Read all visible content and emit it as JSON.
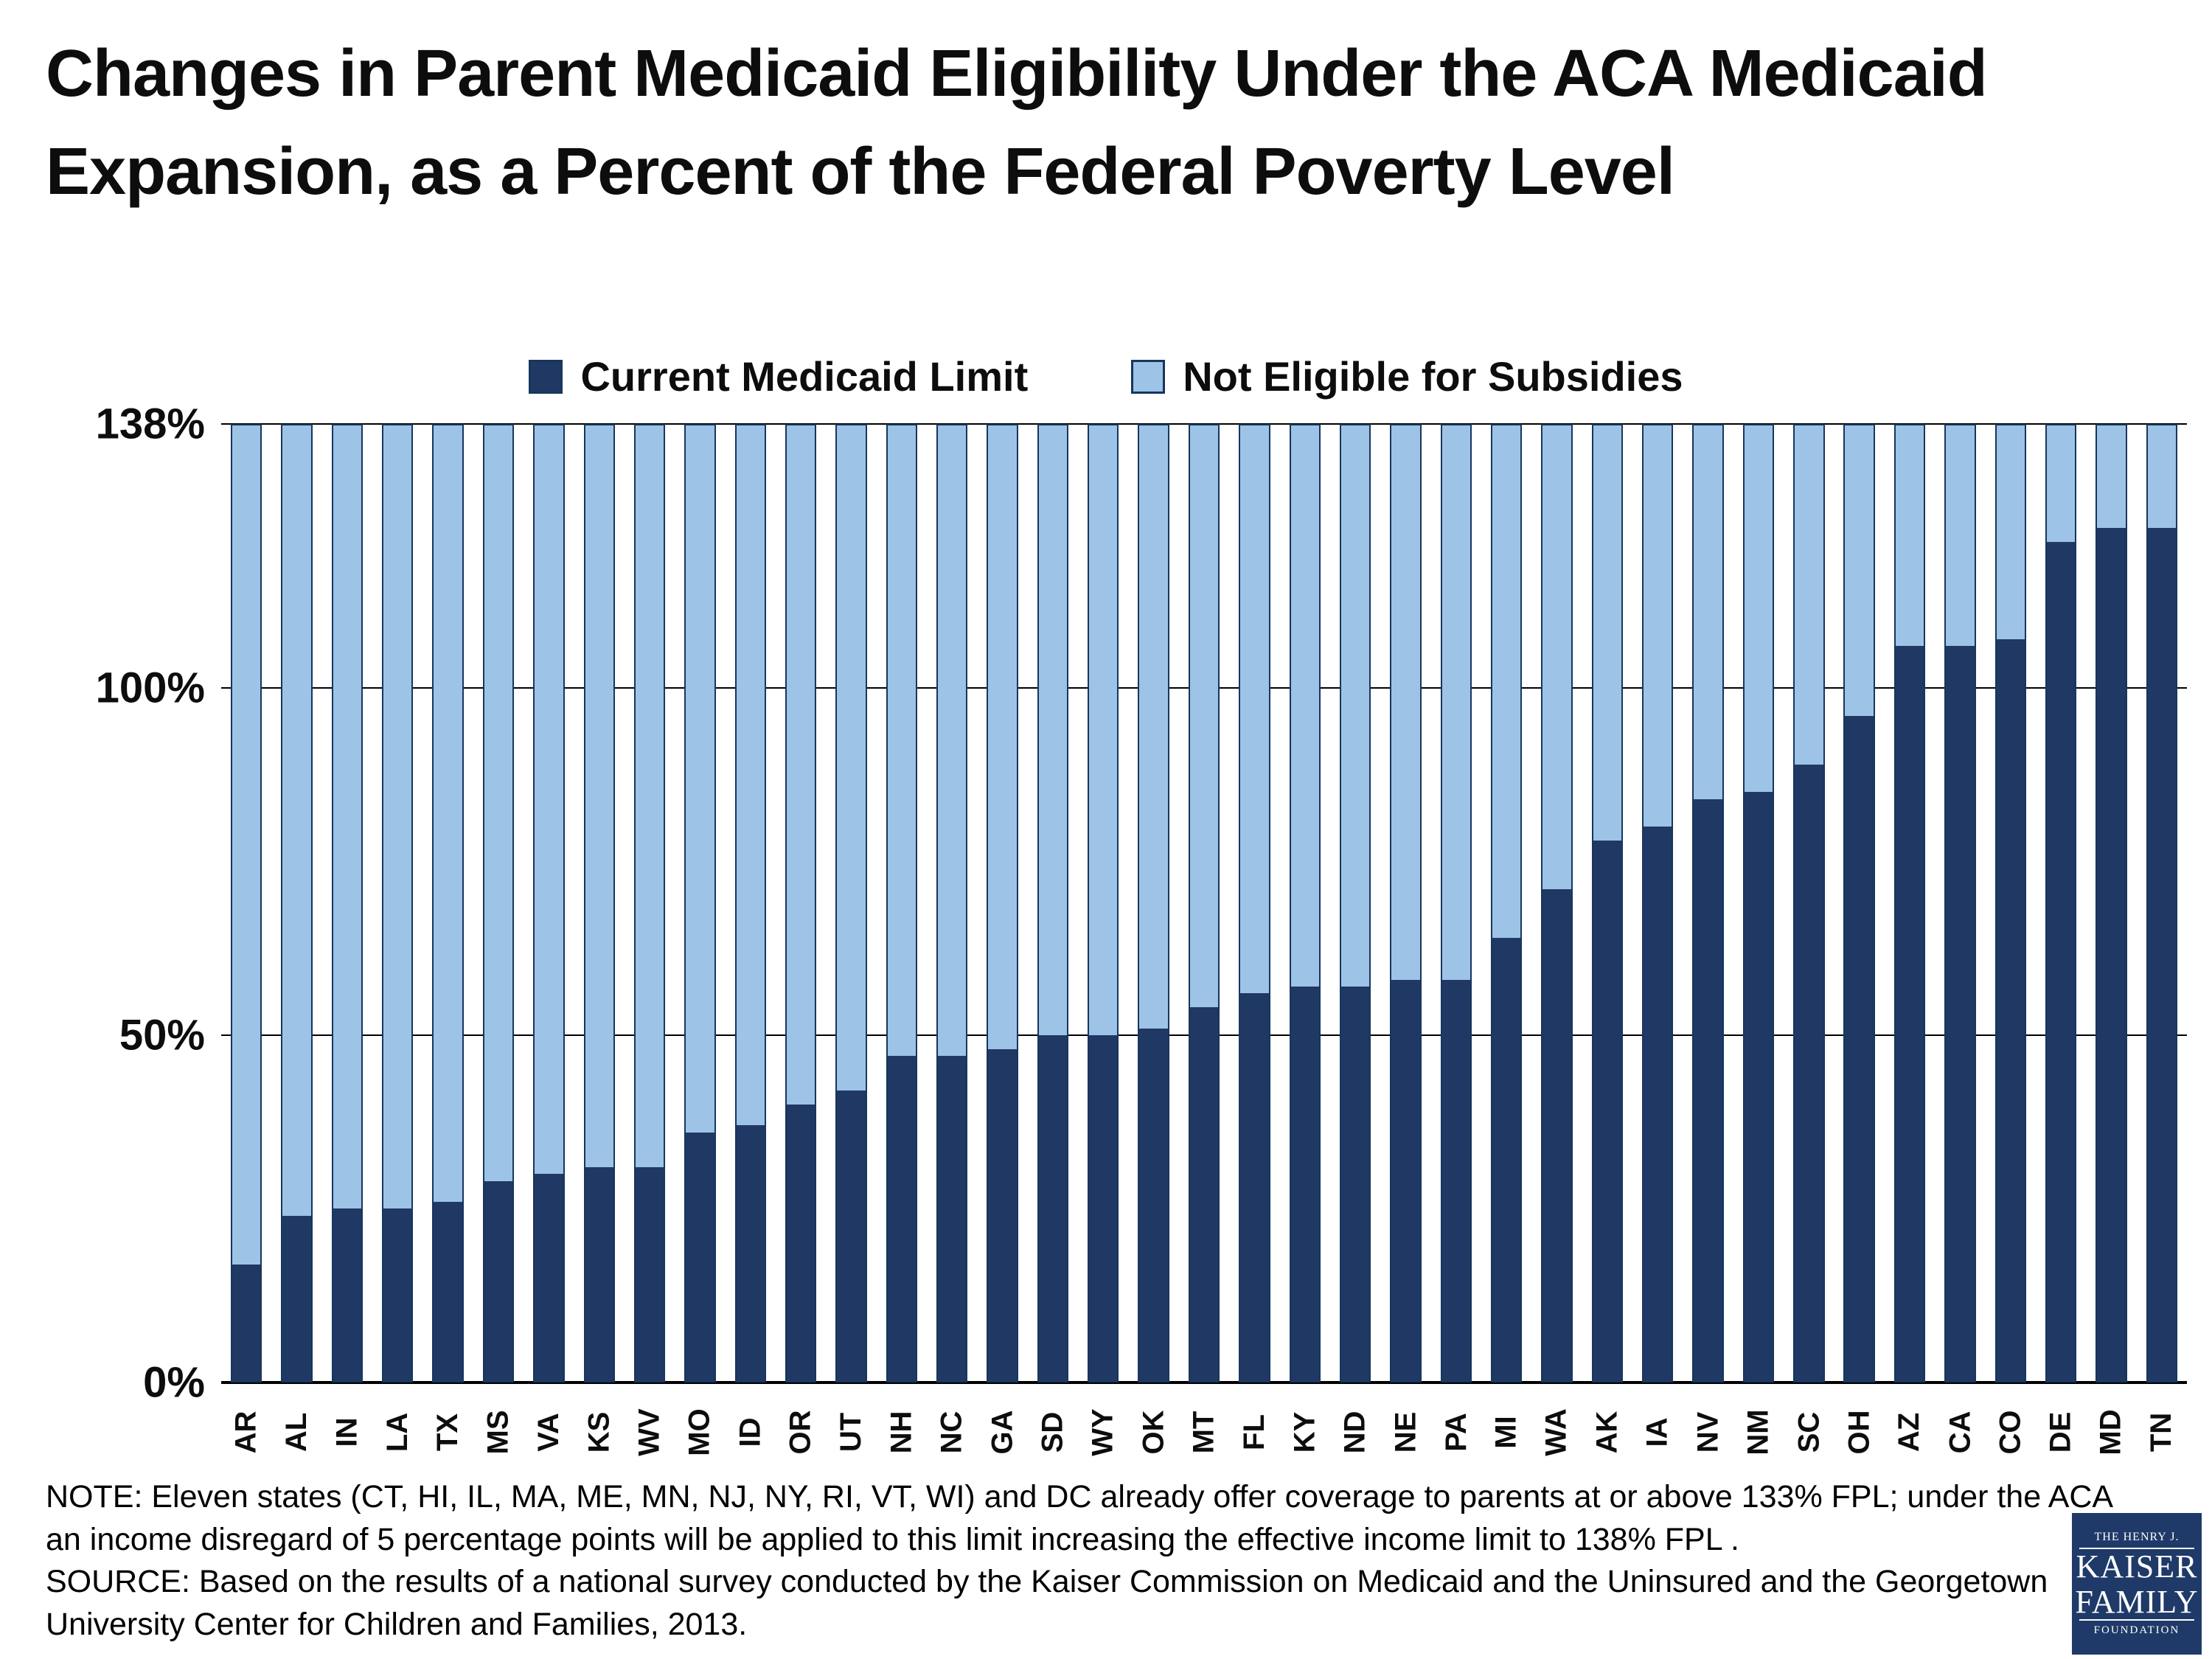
{
  "chart_data": {
    "type": "bar",
    "stacked": true,
    "title": "Changes in Parent Medicaid Eligibility Under the ACA Medicaid Expansion, as a Percent of the Federal Poverty Level",
    "title_lines": [
      "Changes in Parent Medicaid Eligibility Under the ACA Medicaid",
      "Expansion, as a Percent of the Federal Poverty Level"
    ],
    "xlabel": "",
    "ylabel": "",
    "ylim": [
      0,
      138
    ],
    "grid": "horizontal",
    "legend_position": "top",
    "yticks": [
      {
        "value": 138,
        "label": "138%"
      },
      {
        "value": 100,
        "label": "100%"
      },
      {
        "value": 50,
        "label": "50%"
      },
      {
        "value": 0,
        "label": "0%"
      }
    ],
    "categories": [
      "AR",
      "AL",
      "IN",
      "LA",
      "TX",
      "MS",
      "VA",
      "KS",
      "WV",
      "MO",
      "ID",
      "OR",
      "UT",
      "NH",
      "NC",
      "GA",
      "SD",
      "WY",
      "OK",
      "MT",
      "FL",
      "KY",
      "ND",
      "NE",
      "PA",
      "MI",
      "WA",
      "AK",
      "IA",
      "NV",
      "NM",
      "SC",
      "OH",
      "AZ",
      "CA",
      "CO",
      "DE",
      "MD",
      "TN"
    ],
    "series": [
      {
        "name": "Current Medicaid Limit",
        "color": "#1F3864",
        "values": [
          17,
          24,
          25,
          25,
          26,
          29,
          30,
          31,
          31,
          36,
          37,
          40,
          42,
          47,
          47,
          48,
          50,
          50,
          51,
          54,
          56,
          57,
          57,
          58,
          58,
          64,
          71,
          78,
          80,
          84,
          85,
          89,
          96,
          106,
          106,
          107,
          121,
          123,
          123
        ]
      },
      {
        "name": "Not Eligible for Subsidies",
        "color": "#9DC3E6",
        "values": [
          121,
          114,
          113,
          113,
          112,
          109,
          108,
          107,
          107,
          102,
          101,
          98,
          96,
          91,
          91,
          90,
          88,
          88,
          87,
          84,
          82,
          81,
          81,
          80,
          80,
          74,
          67,
          60,
          58,
          54,
          53,
          49,
          42,
          32,
          32,
          31,
          17,
          15,
          15
        ]
      }
    ]
  },
  "notes": {
    "note": "NOTE: Eleven states (CT, HI, IL, MA, ME, MN, NJ, NY, RI, VT, WI) and DC already offer coverage to parents at or above 133% FPL; under the ACA\nan income disregard of 5 percentage points will be applied to this limit increasing the effective income limit to 138% FPL .",
    "source": "SOURCE: Based on the results of a national survey conducted by the Kaiser Commission on Medicaid and the Uninsured and the Georgetown\nUniversity Center for Children and Families, 2013."
  },
  "logo": {
    "line1": "THE HENRY J.",
    "line2": "KAISER",
    "line3": "FAMILY",
    "line4": "FOUNDATION"
  }
}
